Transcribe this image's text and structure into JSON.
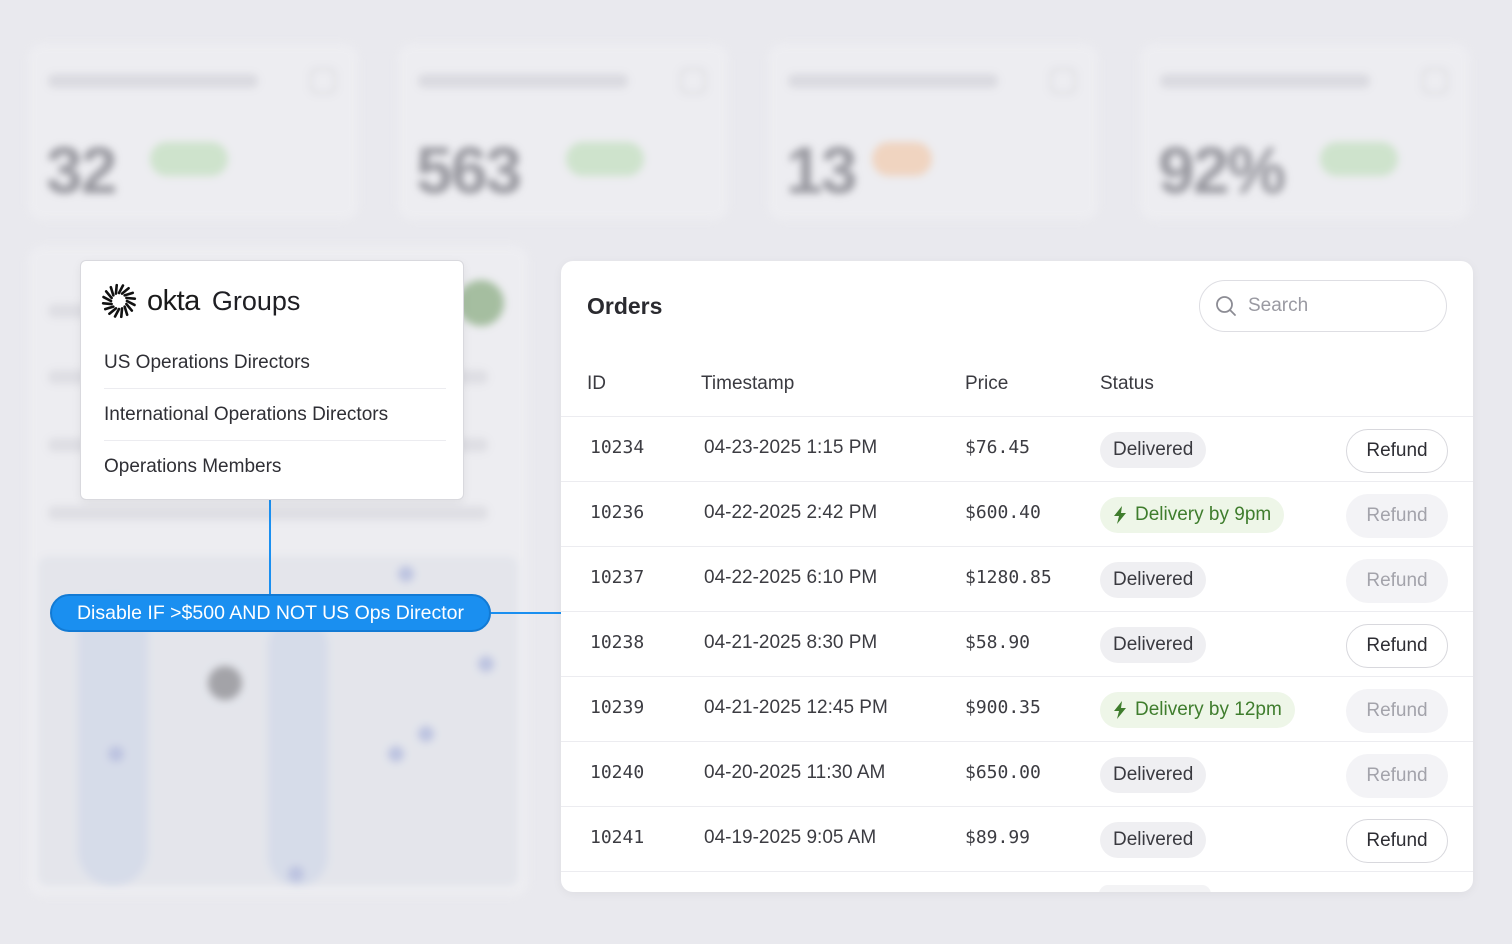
{
  "background_dashboard": {
    "stats": [
      {
        "value": "32",
        "pill_color": "#b9dfb2"
      },
      {
        "value": "563",
        "pill_color": "#b9dfb2"
      },
      {
        "value": "13",
        "pill_color": "#f6c49c"
      },
      {
        "value": "92%",
        "pill_color": "#b9dfb2"
      }
    ]
  },
  "okta": {
    "logo_text": "okta",
    "title": "Groups",
    "groups": [
      "US Operations Directors",
      "International Operations Directors",
      "Operations Members"
    ]
  },
  "rule": {
    "label": "Disable IF >$500 AND NOT US Ops Director"
  },
  "orders": {
    "title": "Orders",
    "search": {
      "placeholder": "Search",
      "value": ""
    },
    "columns": [
      "ID",
      "Timestamp",
      "Price",
      "Status"
    ],
    "refund_label": "Refund",
    "rows": [
      {
        "id": "10234",
        "timestamp": "04-23-2025 1:15 PM",
        "price": "$76.45",
        "status": "Delivered",
        "express": false,
        "refund_disabled": false
      },
      {
        "id": "10236",
        "timestamp": "04-22-2025 2:42 PM",
        "price": "$600.40",
        "status": "Delivery by 9pm",
        "express": true,
        "refund_disabled": true
      },
      {
        "id": "10237",
        "timestamp": "04-22-2025 6:10 PM",
        "price": "$1280.85",
        "status": "Delivered",
        "express": false,
        "refund_disabled": true
      },
      {
        "id": "10238",
        "timestamp": "04-21-2025 8:30 PM",
        "price": "$58.90",
        "status": "Delivered",
        "express": false,
        "refund_disabled": false
      },
      {
        "id": "10239",
        "timestamp": "04-21-2025 12:45 PM",
        "price": "$900.35",
        "status": "Delivery by 12pm",
        "express": true,
        "refund_disabled": true
      },
      {
        "id": "10240",
        "timestamp": "04-20-2025 11:30 AM",
        "price": "$650.00",
        "status": "Delivered",
        "express": false,
        "refund_disabled": true
      },
      {
        "id": "10241",
        "timestamp": "04-19-2025 9:05 AM",
        "price": "$89.99",
        "status": "Delivered",
        "express": false,
        "refund_disabled": false
      }
    ]
  },
  "colors": {
    "accent_blue": "#1a8ff0",
    "express_green": "#3f7d2d",
    "express_bg": "#eef6e8",
    "badge_bg": "#efeff2"
  }
}
